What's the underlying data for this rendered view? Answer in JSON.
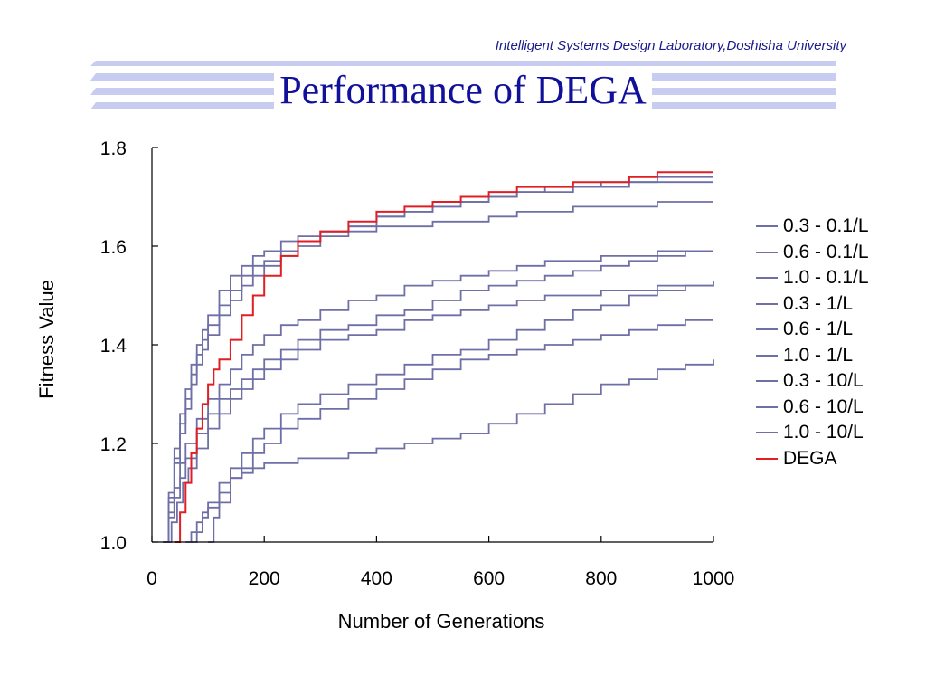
{
  "header": {
    "affiliation": "Intelligent Systems Design Laboratory,Doshisha University",
    "title": "Performance of DEGA"
  },
  "colors": {
    "title": "#10109a",
    "stripe": "#c8ccf0",
    "series_default": "#6e6fa6",
    "dega": "#e01e24"
  },
  "chart_data": {
    "type": "line",
    "xlabel": "Number of Generations",
    "ylabel": "Fitness Value",
    "xlim": [
      0,
      1000
    ],
    "ylim": [
      1.0,
      1.8
    ],
    "xticks": [
      0,
      200,
      400,
      600,
      800,
      1000
    ],
    "yticks": [
      1.0,
      1.2,
      1.4,
      1.6,
      1.8
    ],
    "ytick_labels": [
      "1.0",
      "1.2",
      "1.4",
      "1.6",
      "1.8"
    ],
    "grid": false,
    "legend_position": "right",
    "series": [
      {
        "name": "0.3 - 0.1/L",
        "color": "#6e6fa6",
        "x": [
          20,
          30,
          40,
          50,
          60,
          70,
          80,
          90,
          100,
          120,
          140,
          160,
          180,
          200,
          230,
          260,
          300,
          350,
          400,
          450,
          500,
          550,
          600,
          650,
          700,
          750,
          800,
          850,
          900,
          950,
          1000
        ],
        "y": [
          1.0,
          1.08,
          1.16,
          1.22,
          1.27,
          1.32,
          1.36,
          1.39,
          1.42,
          1.46,
          1.49,
          1.52,
          1.54,
          1.56,
          1.58,
          1.6,
          1.62,
          1.64,
          1.66,
          1.67,
          1.68,
          1.69,
          1.7,
          1.71,
          1.71,
          1.72,
          1.72,
          1.73,
          1.73,
          1.73,
          1.73
        ]
      },
      {
        "name": "0.6 - 0.1/L",
        "color": "#6e6fa6",
        "x": [
          20,
          30,
          40,
          50,
          60,
          70,
          80,
          90,
          100,
          120,
          140,
          160,
          180,
          200,
          230,
          260,
          300,
          350,
          400,
          450,
          500,
          550,
          600,
          650,
          700,
          750,
          800,
          850,
          900,
          950,
          1000
        ],
        "y": [
          1.0,
          1.1,
          1.19,
          1.26,
          1.31,
          1.36,
          1.4,
          1.43,
          1.46,
          1.51,
          1.54,
          1.56,
          1.58,
          1.59,
          1.61,
          1.62,
          1.63,
          1.64,
          1.66,
          1.67,
          1.68,
          1.69,
          1.7,
          1.71,
          1.72,
          1.72,
          1.73,
          1.73,
          1.74,
          1.74,
          1.74
        ]
      },
      {
        "name": "1.0 - 0.1/L",
        "color": "#6e6fa6",
        "x": [
          20,
          30,
          40,
          50,
          60,
          70,
          80,
          90,
          100,
          120,
          140,
          160,
          180,
          200,
          230,
          260,
          300,
          350,
          400,
          450,
          500,
          550,
          600,
          650,
          700,
          750,
          800,
          850,
          900,
          950,
          1000
        ],
        "y": [
          1.0,
          1.09,
          1.17,
          1.24,
          1.29,
          1.34,
          1.38,
          1.41,
          1.44,
          1.48,
          1.51,
          1.54,
          1.56,
          1.57,
          1.59,
          1.61,
          1.63,
          1.63,
          1.64,
          1.64,
          1.65,
          1.65,
          1.66,
          1.67,
          1.67,
          1.68,
          1.68,
          1.68,
          1.69,
          1.69,
          1.69
        ]
      },
      {
        "name": "0.3 - 1/L",
        "color": "#6e6fa6",
        "x": [
          20,
          30,
          40,
          50,
          60,
          80,
          100,
          120,
          140,
          160,
          180,
          200,
          230,
          260,
          300,
          350,
          400,
          450,
          500,
          550,
          600,
          650,
          700,
          750,
          800,
          850,
          900,
          950,
          1000
        ],
        "y": [
          1.0,
          1.06,
          1.11,
          1.16,
          1.2,
          1.25,
          1.29,
          1.32,
          1.35,
          1.38,
          1.4,
          1.42,
          1.44,
          1.45,
          1.47,
          1.49,
          1.5,
          1.52,
          1.53,
          1.54,
          1.55,
          1.56,
          1.57,
          1.57,
          1.58,
          1.58,
          1.59,
          1.59,
          1.59
        ]
      },
      {
        "name": "0.6 - 1/L",
        "color": "#6e6fa6",
        "x": [
          20,
          30,
          40,
          50,
          60,
          80,
          100,
          120,
          140,
          160,
          180,
          200,
          230,
          260,
          300,
          350,
          400,
          450,
          500,
          550,
          600,
          650,
          700,
          750,
          800,
          850,
          900,
          950,
          1000
        ],
        "y": [
          1.0,
          1.05,
          1.09,
          1.13,
          1.17,
          1.22,
          1.26,
          1.29,
          1.31,
          1.33,
          1.35,
          1.37,
          1.39,
          1.41,
          1.43,
          1.44,
          1.46,
          1.47,
          1.49,
          1.51,
          1.52,
          1.53,
          1.54,
          1.55,
          1.56,
          1.57,
          1.58,
          1.59,
          1.59
        ]
      },
      {
        "name": "1.0 - 1/L",
        "color": "#6e6fa6",
        "x": [
          25,
          35,
          45,
          55,
          65,
          80,
          100,
          120,
          140,
          160,
          180,
          200,
          230,
          260,
          300,
          350,
          400,
          450,
          500,
          550,
          600,
          650,
          700,
          750,
          800,
          850,
          900,
          950,
          1000
        ],
        "y": [
          1.0,
          1.04,
          1.08,
          1.12,
          1.15,
          1.19,
          1.23,
          1.26,
          1.29,
          1.31,
          1.33,
          1.35,
          1.37,
          1.39,
          1.41,
          1.42,
          1.43,
          1.45,
          1.46,
          1.47,
          1.48,
          1.49,
          1.5,
          1.5,
          1.51,
          1.51,
          1.52,
          1.52,
          1.52
        ]
      },
      {
        "name": "0.3 - 10/L",
        "color": "#6e6fa6",
        "x": [
          60,
          70,
          80,
          90,
          100,
          120,
          140,
          160,
          180,
          200,
          230,
          260,
          300,
          350,
          400,
          450,
          500,
          550,
          600,
          650,
          700,
          750,
          800,
          850,
          900,
          950,
          1000
        ],
        "y": [
          1.0,
          1.02,
          1.04,
          1.06,
          1.08,
          1.12,
          1.15,
          1.18,
          1.21,
          1.23,
          1.26,
          1.28,
          1.3,
          1.32,
          1.34,
          1.36,
          1.38,
          1.39,
          1.41,
          1.43,
          1.45,
          1.47,
          1.48,
          1.5,
          1.51,
          1.52,
          1.53
        ]
      },
      {
        "name": "0.6 - 10/L",
        "color": "#6e6fa6",
        "x": [
          70,
          80,
          90,
          100,
          120,
          140,
          160,
          180,
          200,
          230,
          260,
          300,
          350,
          400,
          450,
          500,
          550,
          600,
          650,
          700,
          750,
          800,
          850,
          900,
          950,
          1000
        ],
        "y": [
          1.0,
          1.02,
          1.05,
          1.07,
          1.1,
          1.13,
          1.15,
          1.18,
          1.2,
          1.23,
          1.25,
          1.27,
          1.29,
          1.31,
          1.33,
          1.35,
          1.37,
          1.38,
          1.39,
          1.4,
          1.41,
          1.42,
          1.43,
          1.44,
          1.45,
          1.45
        ]
      },
      {
        "name": "1.0 - 10/L",
        "color": "#6e6fa6",
        "x": [
          100,
          110,
          120,
          140,
          160,
          180,
          200,
          230,
          260,
          300,
          350,
          400,
          450,
          500,
          550,
          600,
          650,
          700,
          750,
          800,
          850,
          900,
          950,
          1000
        ],
        "y": [
          1.0,
          1.05,
          1.08,
          1.13,
          1.14,
          1.15,
          1.16,
          1.16,
          1.17,
          1.17,
          1.18,
          1.19,
          1.2,
          1.21,
          1.22,
          1.24,
          1.26,
          1.28,
          1.3,
          1.32,
          1.33,
          1.35,
          1.36,
          1.37
        ]
      },
      {
        "name": "DEGA",
        "color": "#e01e24",
        "x": [
          40,
          50,
          60,
          70,
          80,
          90,
          100,
          110,
          120,
          140,
          160,
          180,
          200,
          230,
          260,
          300,
          350,
          400,
          450,
          500,
          550,
          600,
          650,
          700,
          750,
          800,
          850,
          900,
          950,
          1000
        ],
        "y": [
          1.0,
          1.06,
          1.12,
          1.18,
          1.23,
          1.28,
          1.32,
          1.35,
          1.37,
          1.41,
          1.46,
          1.5,
          1.54,
          1.58,
          1.61,
          1.63,
          1.65,
          1.67,
          1.68,
          1.69,
          1.7,
          1.71,
          1.72,
          1.72,
          1.73,
          1.73,
          1.74,
          1.75,
          1.75,
          1.75
        ]
      }
    ]
  }
}
